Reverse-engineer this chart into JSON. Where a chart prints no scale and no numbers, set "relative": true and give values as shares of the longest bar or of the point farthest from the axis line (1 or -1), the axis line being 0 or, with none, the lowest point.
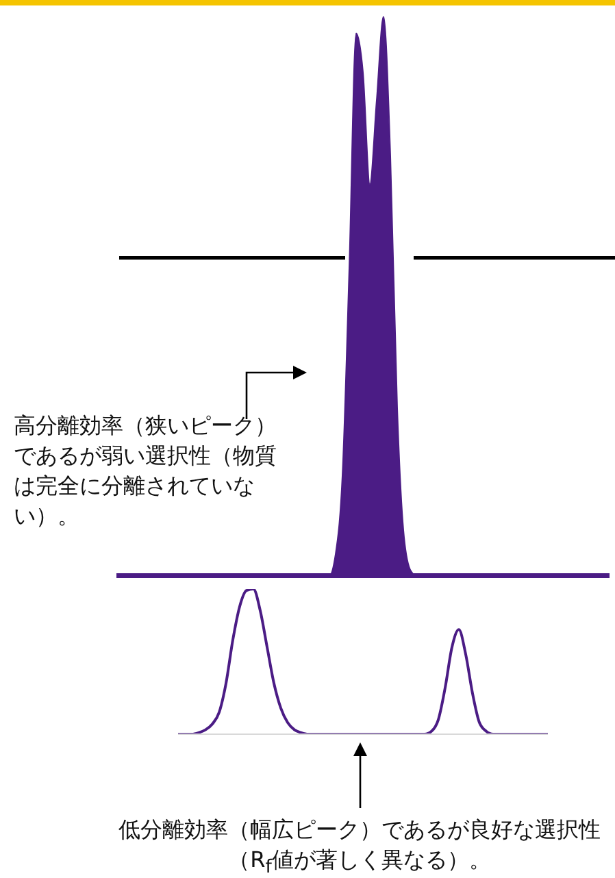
{
  "chart_data": [
    {
      "type": "area",
      "relative": true,
      "categories": [
        null,
        null,
        null,
        null,
        null,
        null,
        null,
        null,
        null,
        null,
        null,
        null,
        null,
        null,
        null,
        null,
        null,
        null,
        null,
        null,
        null,
        null,
        null,
        null,
        null,
        null,
        null,
        null,
        null,
        null,
        null,
        null,
        null,
        null,
        null,
        null,
        null,
        null,
        null,
        null,
        null,
        null,
        null,
        null,
        null,
        null,
        null,
        null,
        null,
        null,
        null,
        null,
        null,
        null,
        null,
        null,
        null,
        null,
        null,
        null,
        null,
        null,
        null,
        null,
        null,
        null,
        null,
        null,
        null,
        null,
        null,
        null,
        null
      ],
      "series": [
        {
          "color": "#4b1c85",
          "values": [
            null,
            null,
            null,
            null,
            null,
            null,
            null,
            null,
            null,
            0,
            0,
            0,
            0,
            0,
            0,
            0,
            0,
            0,
            0,
            0,
            0,
            0,
            0,
            0,
            0,
            0,
            0,
            0,
            0,
            0,
            0,
            0,
            0.04,
            0.18,
            0.55,
            0.97,
            0.9,
            0.7,
            0.85,
            1,
            0.75,
            0.3,
            0.07,
            0.01,
            0,
            0,
            0,
            0,
            0,
            0,
            0,
            0,
            0,
            0,
            0,
            0,
            0,
            0,
            0,
            0,
            0,
            0,
            0,
            0,
            0,
            0,
            0,
            0,
            0,
            0,
            0,
            0,
            0
          ]
        }
      ],
      "annotations": [
        "高分離効率（狭いピーク）であるが弱い選択性（物質は完全に分離されていない）。"
      ]
    },
    {
      "type": "line",
      "relative": true,
      "categories": [
        null,
        null,
        null,
        null,
        null,
        null,
        null,
        null,
        null,
        null,
        null,
        null,
        null,
        null,
        null,
        null,
        null,
        null,
        null,
        null,
        null,
        null,
        null,
        null,
        null,
        null,
        null,
        null,
        null,
        null,
        null,
        null,
        null,
        null,
        null,
        null,
        null,
        null,
        null,
        null,
        null,
        null,
        null,
        null,
        null,
        null,
        null,
        null,
        null,
        null,
        null,
        null,
        null,
        null,
        null
      ],
      "series": [
        {
          "color": "#4b1c85",
          "values": [
            0,
            0,
            0,
            0.01,
            0.03,
            0.07,
            0.15,
            0.35,
            0.65,
            0.88,
            0.99,
            1,
            0.85,
            0.6,
            0.35,
            0.18,
            0.08,
            0.03,
            0.01,
            0,
            0,
            0,
            0,
            0,
            0,
            0,
            0,
            0,
            0,
            0,
            0,
            0,
            0,
            0,
            0,
            0,
            0,
            0.02,
            0.1,
            0.32,
            0.6,
            0.72,
            0.55,
            0.28,
            0.08,
            0.02,
            0,
            0,
            0,
            0,
            0,
            0,
            0,
            0,
            0
          ]
        }
      ],
      "annotations": [
        "低分離効率（幅広ピーク）であるが良好な選択性（R$_{f}$値が著しく異なる）。"
      ]
    }
  ]
}
